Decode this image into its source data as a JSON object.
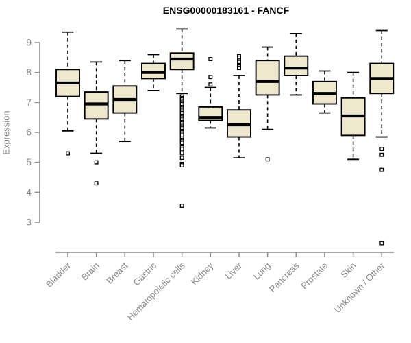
{
  "chart_data": {
    "type": "boxplot",
    "title": "ENSG00000183161 - FANCF",
    "xlabel": "",
    "ylabel": "Expression",
    "yticks": [
      3,
      4,
      5,
      6,
      7,
      8,
      9
    ],
    "ylim": [
      2.1,
      9.6
    ],
    "grid": false,
    "legend": false,
    "categories": [
      "Bladder",
      "Brain",
      "Breast",
      "Gastric",
      "Hematopoietic cells",
      "Kidney",
      "Liver",
      "Lung",
      "Pancreas",
      "Prostate",
      "Skin",
      "Unknown / Other"
    ],
    "series": [
      {
        "category": "Bladder",
        "whisker_low": 6.05,
        "q1": 7.2,
        "median": 7.65,
        "q3": 8.1,
        "whisker_high": 9.35,
        "outliers": [
          5.3
        ]
      },
      {
        "category": "Brain",
        "whisker_low": 5.3,
        "q1": 6.45,
        "median": 6.95,
        "q3": 7.35,
        "whisker_high": 8.35,
        "outliers": [
          5.0,
          4.3
        ]
      },
      {
        "category": "Breast",
        "whisker_low": 5.7,
        "q1": 6.65,
        "median": 7.1,
        "q3": 7.55,
        "whisker_high": 8.4,
        "outliers": []
      },
      {
        "category": "Gastric",
        "whisker_low": 7.4,
        "q1": 7.8,
        "median": 8.0,
        "q3": 8.3,
        "whisker_high": 8.6,
        "outliers": []
      },
      {
        "category": "Hematopoietic cells",
        "whisker_low": 7.3,
        "q1": 8.1,
        "median": 8.45,
        "q3": 8.65,
        "whisker_high": 9.45,
        "outliers": [
          7.2,
          7.15,
          7.1,
          7.05,
          7.0,
          6.95,
          6.9,
          6.85,
          6.8,
          6.75,
          6.7,
          6.65,
          6.6,
          6.55,
          6.5,
          6.45,
          6.4,
          6.35,
          6.3,
          6.25,
          6.2,
          6.15,
          6.1,
          6.05,
          6.0,
          5.95,
          5.9,
          5.8,
          5.75,
          5.7,
          5.65,
          5.5,
          5.45,
          5.35,
          5.3,
          5.15,
          4.95,
          4.9,
          3.55
        ]
      },
      {
        "category": "Kidney",
        "whisker_low": 6.15,
        "q1": 6.4,
        "median": 6.5,
        "q3": 6.85,
        "whisker_high": 7.5,
        "outliers": [
          8.45,
          7.85,
          7.6
        ]
      },
      {
        "category": "Liver",
        "whisker_low": 5.15,
        "q1": 5.85,
        "median": 6.25,
        "q3": 6.75,
        "whisker_high": 7.9,
        "outliers": [
          8.55,
          8.5,
          8.4,
          8.35,
          8.25,
          8.2,
          8.15
        ]
      },
      {
        "category": "Lung",
        "whisker_low": 6.1,
        "q1": 7.25,
        "median": 7.7,
        "q3": 8.4,
        "whisker_high": 8.85,
        "outliers": [
          5.1
        ]
      },
      {
        "category": "Pancreas",
        "whisker_low": 7.25,
        "q1": 7.9,
        "median": 8.15,
        "q3": 8.55,
        "whisker_high": 9.3,
        "outliers": []
      },
      {
        "category": "Prostate",
        "whisker_low": 6.65,
        "q1": 6.95,
        "median": 7.3,
        "q3": 7.7,
        "whisker_high": 8.05,
        "outliers": []
      },
      {
        "category": "Skin",
        "whisker_low": 5.1,
        "q1": 5.9,
        "median": 6.55,
        "q3": 7.15,
        "whisker_high": 8.0,
        "outliers": []
      },
      {
        "category": "Unknown / Other",
        "whisker_low": 5.85,
        "q1": 7.3,
        "median": 7.8,
        "q3": 8.3,
        "whisker_high": 9.4,
        "outliers": [
          5.45,
          5.25,
          4.75,
          2.3
        ]
      }
    ],
    "colors": {
      "box_fill": "#EEE8CF",
      "box_stroke": "#000000",
      "median": "#000000",
      "whisker": "#000000",
      "outlier_stroke": "#000000",
      "outlier_fill": "#FFFFFF",
      "axis": "#8A8A8A",
      "labels": "#8A8A8A",
      "title": "#000000",
      "background": "#FFFFFF"
    }
  }
}
